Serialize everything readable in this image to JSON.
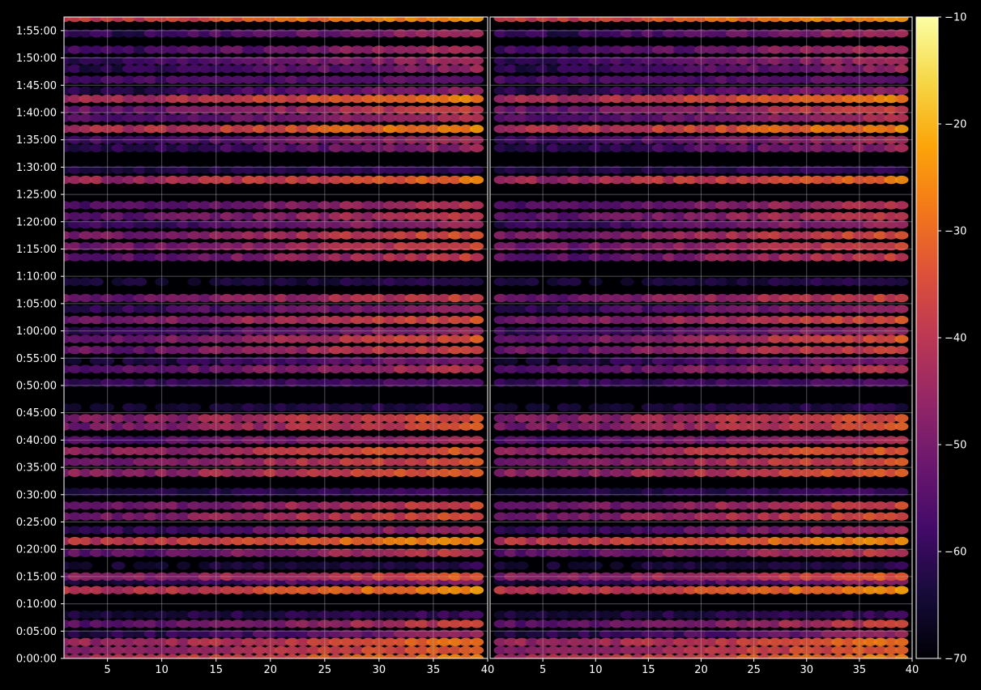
{
  "chart_data": {
    "type": "heatmap",
    "title": "",
    "xlabel": "",
    "ylabel": "",
    "panels": [
      {
        "name": "",
        "xlim": [
          1,
          40
        ],
        "xticks": [
          5,
          10,
          15,
          20,
          25,
          30,
          35,
          40
        ]
      },
      {
        "name": "",
        "xlim": [
          0,
          40
        ],
        "xticks": [
          5,
          10,
          15,
          20,
          25,
          30,
          35,
          40
        ]
      }
    ],
    "y_range_seconds": [
      0,
      7050
    ],
    "yticks": [
      "0:00:00",
      "0:05:00",
      "0:10:00",
      "0:15:00",
      "0:20:00",
      "0:25:00",
      "0:30:00",
      "0:35:00",
      "0:40:00",
      "0:45:00",
      "0:50:00",
      "0:55:00",
      "1:00:00",
      "1:05:00",
      "1:10:00",
      "1:15:00",
      "1:20:00",
      "1:25:00",
      "1:30:00",
      "1:35:00",
      "1:40:00",
      "1:45:00",
      "1:50:00",
      "1:55:00"
    ],
    "colorbar": {
      "min": -70,
      "max": -10,
      "ticks": [
        "-10",
        "-20",
        "-30",
        "-40",
        "-50",
        "-60",
        "-70"
      ],
      "colormap": "inferno"
    },
    "grid": true,
    "background": "#000000",
    "bands": [
      {
        "t": "0:00:00",
        "level": -28
      },
      {
        "t": "0:01:30",
        "level": -33
      },
      {
        "t": "0:03:00",
        "level": -31
      },
      {
        "t": "0:04:30",
        "level": -48
      },
      {
        "t": "0:06:20",
        "level": -40
      },
      {
        "t": "0:08:00",
        "level": -58
      },
      {
        "t": "0:12:30",
        "level": -27
      },
      {
        "t": "0:14:10",
        "level": -48
      },
      {
        "t": "0:15:00",
        "level": -34
      },
      {
        "t": "0:17:00",
        "level": -60
      },
      {
        "t": "0:19:20",
        "level": -40
      },
      {
        "t": "0:21:30",
        "level": -26
      },
      {
        "t": "0:23:30",
        "level": -45
      },
      {
        "t": "0:26:00",
        "level": -36
      },
      {
        "t": "0:28:00",
        "level": -38
      },
      {
        "t": "0:30:30",
        "level": -58
      },
      {
        "t": "0:34:00",
        "level": -33
      },
      {
        "t": "0:36:00",
        "level": -35
      },
      {
        "t": "0:38:00",
        "level": -33
      },
      {
        "t": "0:40:00",
        "level": -42
      },
      {
        "t": "0:42:30",
        "level": -36
      },
      {
        "t": "0:44:00",
        "level": -34
      },
      {
        "t": "0:46:00",
        "level": -60
      },
      {
        "t": "0:50:30",
        "level": -55
      },
      {
        "t": "0:53:00",
        "level": -41
      },
      {
        "t": "0:54:30",
        "level": -50
      },
      {
        "t": "0:56:30",
        "level": -38
      },
      {
        "t": "0:58:30",
        "level": -36
      },
      {
        "t": "1:00:00",
        "level": -46
      },
      {
        "t": "1:02:00",
        "level": -36
      },
      {
        "t": "1:04:00",
        "level": -45
      },
      {
        "t": "1:06:00",
        "level": -38
      },
      {
        "t": "1:09:00",
        "level": -60
      },
      {
        "t": "1:13:30",
        "level": -40
      },
      {
        "t": "1:15:30",
        "level": -37
      },
      {
        "t": "1:17:30",
        "level": -36
      },
      {
        "t": "1:19:30",
        "level": -45
      },
      {
        "t": "1:21:00",
        "level": -40
      },
      {
        "t": "1:23:00",
        "level": -42
      },
      {
        "t": "1:27:40",
        "level": -30
      },
      {
        "t": "1:29:30",
        "level": -58
      },
      {
        "t": "1:33:30",
        "level": -48
      },
      {
        "t": "1:35:00",
        "level": -44
      },
      {
        "t": "1:37:00",
        "level": -28
      },
      {
        "t": "1:39:00",
        "level": -42
      },
      {
        "t": "1:40:30",
        "level": -38
      },
      {
        "t": "1:42:30",
        "level": -29
      },
      {
        "t": "1:44:00",
        "level": -48
      },
      {
        "t": "1:46:00",
        "level": -52
      },
      {
        "t": "1:48:00",
        "level": -48
      },
      {
        "t": "1:49:30",
        "level": -46
      },
      {
        "t": "1:51:30",
        "level": -44
      },
      {
        "t": "1:54:30",
        "level": -46
      },
      {
        "t": "1:57:20",
        "level": -24
      }
    ]
  }
}
